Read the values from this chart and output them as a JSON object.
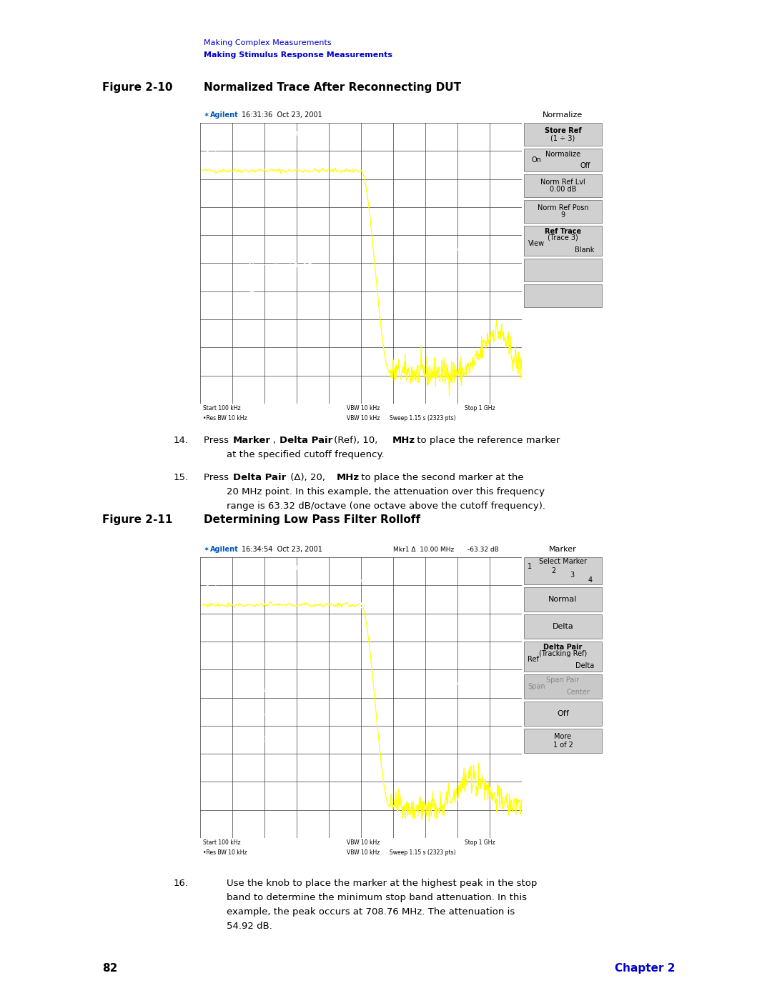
{
  "page_bg": "#ffffff",
  "header_text1": "Making Complex Measurements",
  "header_text2": "Making Stimulus Response Measurements",
  "header_color": "#0000cc",
  "fig10_label": "Figure 2-10",
  "fig10_title": "Normalized Trace After Reconnecting DUT",
  "fig11_label": "Figure 2-11",
  "fig11_title": "Determining Low Pass Filter Rolloff",
  "fig10_screen_header": "16:31:36  Oct 23, 2001",
  "fig11_screen_header": "16:34:54  Oct 23, 2001",
  "screen_bg": "#000000",
  "screen_header_bg": "#b8b8b8",
  "screen_footer_bg": "#b8b8b8",
  "trace_color": "#ffff00",
  "grid_color": "#3a3a3a",
  "screen_text_color": "#ffffff",
  "sidebar_bg": "#c0c0c0",
  "sidebar_btn_bg": "#d0d0d0",
  "sidebar_btn_border": "#888888",
  "footer_page": "82",
  "footer_chapter": "Chapter 2",
  "footer_chapter_color": "#0000cc"
}
